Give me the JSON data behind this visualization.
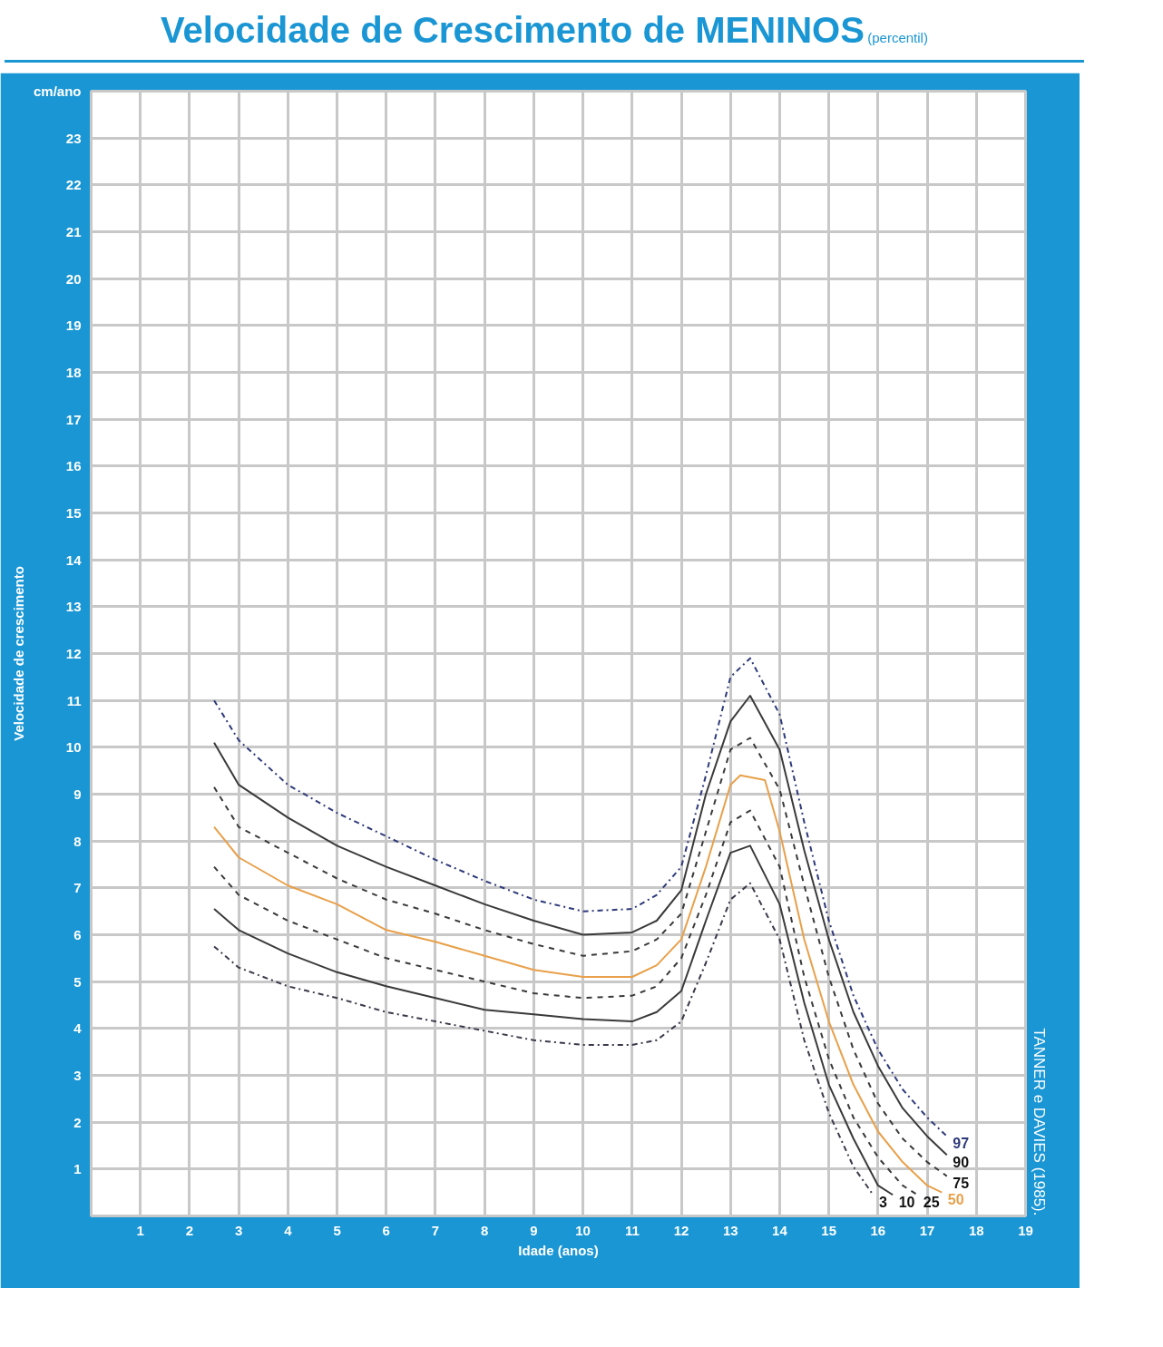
{
  "chart_data": {
    "type": "line",
    "title": "Velocidade de Crescimento de MENINOS",
    "subtitle": "(percentil)",
    "xlabel": "Idade (anos)",
    "ylabel": "Velocidade de crescimento",
    "xlim": [
      0,
      19
    ],
    "ylim": [
      0,
      24
    ],
    "xticks": [
      1,
      2,
      3,
      4,
      5,
      6,
      7,
      8,
      9,
      10,
      11,
      12,
      13,
      14,
      15,
      16,
      17,
      18,
      19
    ],
    "yticks": [
      1,
      2,
      3,
      4,
      5,
      6,
      7,
      8,
      9,
      10,
      11,
      12,
      13,
      14,
      15,
      16,
      17,
      18,
      19,
      20,
      21,
      22,
      23,
      {
        "value": 24,
        "label": "cm/ano"
      }
    ],
    "grid": true,
    "annotations": [
      "TANNER e DAVIES (1985)."
    ],
    "series": [
      {
        "name": "97",
        "color": "#2e3a7a",
        "line_style": "dashdot",
        "x": [
          2.5,
          3,
          4,
          5,
          6,
          7,
          8,
          9,
          10,
          11,
          11.5,
          12,
          12.5,
          13,
          13.4,
          14,
          14.5,
          15,
          15.5,
          16,
          16.5,
          17,
          17.4
        ],
        "values": [
          11.0,
          10.15,
          9.2,
          8.6,
          8.1,
          7.6,
          7.15,
          6.75,
          6.5,
          6.55,
          6.85,
          7.45,
          9.4,
          11.5,
          11.9,
          10.7,
          8.4,
          6.3,
          4.7,
          3.55,
          2.7,
          2.1,
          1.7
        ]
      },
      {
        "name": "90",
        "color": "#3a3a3a",
        "line_style": "solid",
        "x": [
          2.5,
          3,
          4,
          5,
          6,
          7,
          8,
          9,
          10,
          11,
          11.5,
          12,
          12.5,
          13,
          13.4,
          14,
          14.5,
          15,
          15.5,
          16,
          16.5,
          17,
          17.4
        ],
        "values": [
          10.1,
          9.2,
          8.5,
          7.9,
          7.45,
          7.05,
          6.65,
          6.3,
          6.0,
          6.05,
          6.3,
          6.95,
          9.0,
          10.55,
          11.1,
          9.95,
          7.8,
          5.9,
          4.35,
          3.2,
          2.3,
          1.7,
          1.3
        ]
      },
      {
        "name": "75",
        "color": "#3a3a3a",
        "line_style": "dashed",
        "x": [
          2.5,
          3,
          4,
          5,
          6,
          7,
          8,
          9,
          10,
          11,
          11.5,
          12,
          12.5,
          13,
          13.4,
          14,
          14.5,
          15,
          15.5,
          16,
          16.5,
          17,
          17.4
        ],
        "values": [
          9.15,
          8.3,
          7.75,
          7.2,
          6.75,
          6.45,
          6.1,
          5.8,
          5.55,
          5.65,
          5.9,
          6.45,
          8.2,
          9.95,
          10.2,
          9.1,
          7.05,
          5.1,
          3.55,
          2.4,
          1.65,
          1.15,
          0.85
        ]
      },
      {
        "name": "50",
        "color": "#e8a04a",
        "line_style": "solid",
        "x": [
          2.5,
          3,
          4,
          5,
          6,
          7,
          8,
          9,
          10,
          11,
          11.5,
          12,
          12.5,
          13,
          13.2,
          13.7,
          14,
          14.5,
          15,
          15.5,
          16,
          16.5,
          17,
          17.3
        ],
        "values": [
          8.3,
          7.65,
          7.05,
          6.65,
          6.1,
          5.85,
          5.55,
          5.25,
          5.1,
          5.1,
          5.35,
          5.9,
          7.45,
          9.2,
          9.4,
          9.3,
          8.2,
          5.9,
          4.15,
          2.8,
          1.8,
          1.15,
          0.65,
          0.5
        ]
      },
      {
        "name": "25",
        "color": "#3a3a3a",
        "line_style": "dashed",
        "x": [
          2.5,
          3,
          4,
          5,
          6,
          7,
          8,
          9,
          10,
          11,
          11.5,
          12,
          12.5,
          13,
          13.4,
          14,
          14.5,
          15,
          15.5,
          16,
          16.5,
          16.8
        ],
        "values": [
          7.45,
          6.85,
          6.3,
          5.9,
          5.5,
          5.25,
          5.0,
          4.75,
          4.65,
          4.7,
          4.9,
          5.5,
          6.85,
          8.4,
          8.65,
          7.45,
          5.1,
          3.35,
          2.1,
          1.25,
          0.65,
          0.45
        ]
      },
      {
        "name": "10",
        "color": "#3a3a3a",
        "line_style": "solid",
        "x": [
          2.5,
          3,
          4,
          5,
          6,
          7,
          8,
          9,
          10,
          11,
          11.5,
          12,
          12.5,
          13,
          13.4,
          14,
          14.5,
          15,
          15.5,
          16,
          16.3
        ],
        "values": [
          6.55,
          6.1,
          5.6,
          5.2,
          4.9,
          4.65,
          4.4,
          4.3,
          4.2,
          4.15,
          4.35,
          4.8,
          6.3,
          7.75,
          7.9,
          6.65,
          4.55,
          2.8,
          1.65,
          0.65,
          0.45
        ]
      },
      {
        "name": "3",
        "color": "#3a3a4a",
        "line_style": "dashdot",
        "x": [
          2.5,
          3,
          4,
          5,
          6,
          7,
          8,
          9,
          10,
          11,
          11.5,
          12,
          12.5,
          13,
          13.4,
          14,
          14.5,
          15,
          15.5,
          15.9
        ],
        "values": [
          5.75,
          5.3,
          4.9,
          4.65,
          4.35,
          4.15,
          3.95,
          3.75,
          3.65,
          3.65,
          3.75,
          4.15,
          5.4,
          6.75,
          7.1,
          5.9,
          3.75,
          2.2,
          1.05,
          0.45
        ]
      }
    ]
  }
}
